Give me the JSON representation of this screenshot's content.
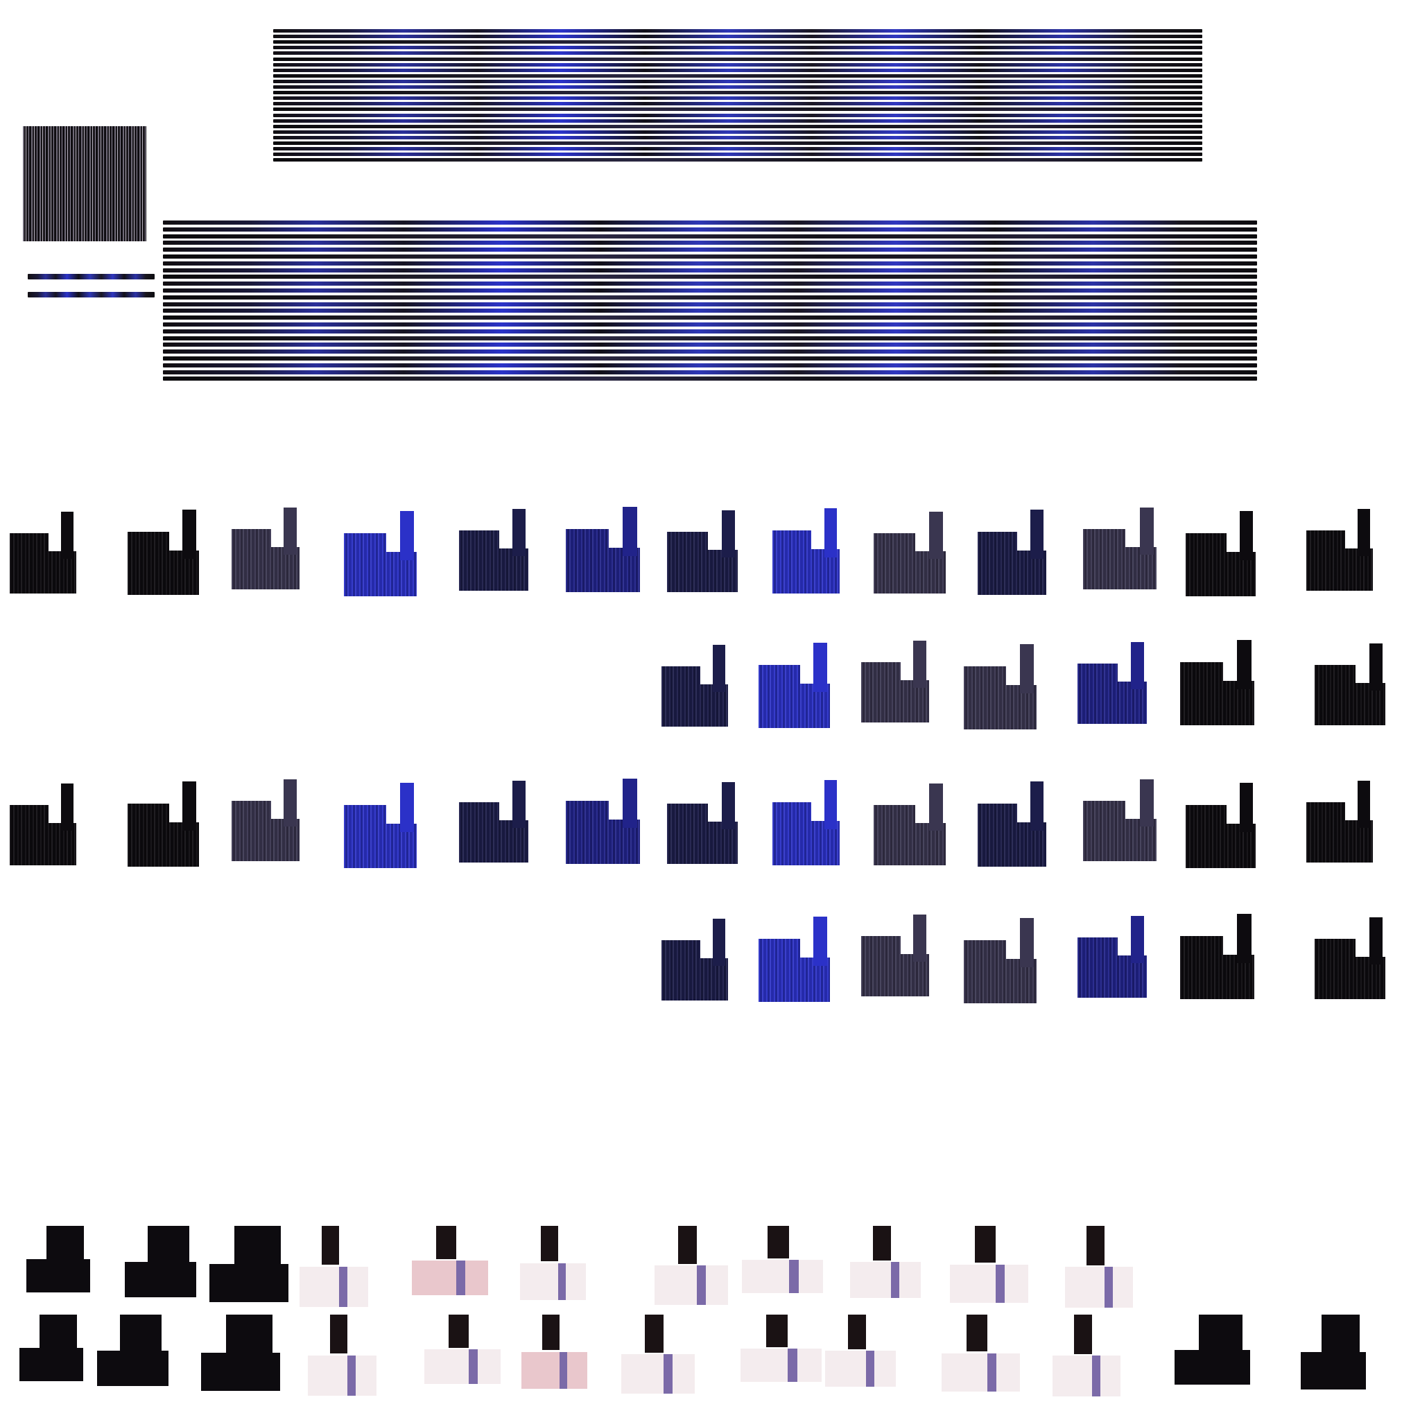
{
  "palette": {
    "black": "#0d0b0f",
    "navy": "#1c1d4a",
    "blue": "#2b31c8",
    "deep-blue": "#21238a",
    "slate": "#3a3650",
    "pale": "#f4ecee",
    "blush": "#e9c7cc",
    "lilac": "#7b6aa8"
  },
  "tile_rows": [
    [
      "black",
      "black",
      "slate",
      "blue",
      "navy",
      "deep-blue",
      "navy",
      "blue",
      "slate",
      "navy",
      "slate",
      "black",
      "black"
    ],
    [
      "navy",
      "blue",
      "slate",
      "slate",
      "deep-blue",
      "black",
      "black"
    ],
    [
      "black",
      "black",
      "slate",
      "blue",
      "navy",
      "deep-blue",
      "navy",
      "blue",
      "slate",
      "navy",
      "slate",
      "black",
      "black"
    ],
    [
      "navy",
      "blue",
      "slate",
      "slate",
      "deep-blue",
      "black",
      "black"
    ]
  ],
  "rig_rows": [
    [
      "black",
      "black",
      "black",
      "pale",
      "blush",
      "pale",
      "pale",
      "pale",
      "pale",
      "pale",
      "pale"
    ],
    [
      "black",
      "black",
      "black",
      "pale",
      "pale",
      "blush",
      "pale",
      "pale",
      "pale",
      "pale",
      "pale",
      "black",
      "black"
    ]
  ]
}
